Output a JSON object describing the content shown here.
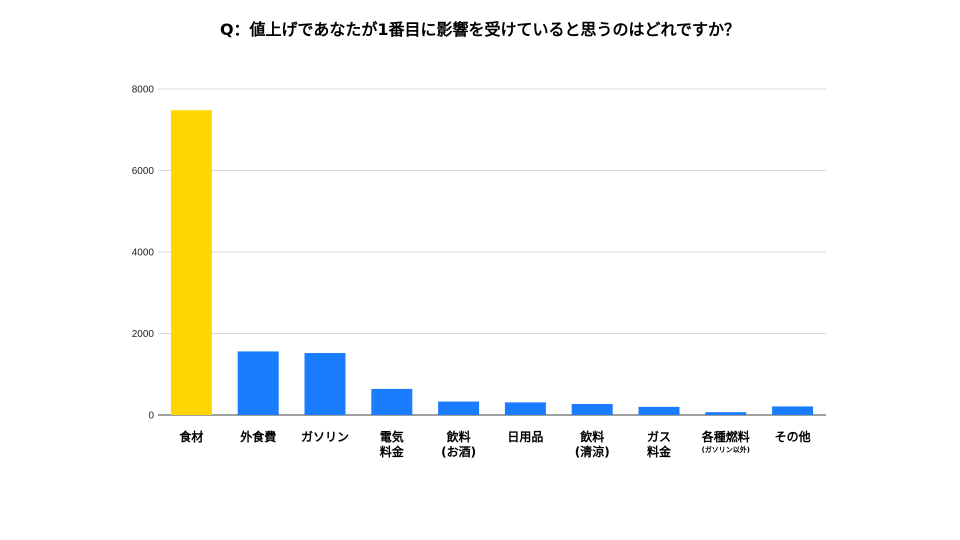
{
  "chart_data": {
    "type": "bar",
    "title": "Q：値上げであなたが1番目に影響を受けていると思うのはどれですか？",
    "xlabel": "",
    "ylabel": "",
    "ylim": [
      0,
      8000
    ],
    "yticks": [
      "0",
      "2000",
      "4000",
      "6000",
      "8000"
    ],
    "grid": true,
    "categories": [
      {
        "lines": [
          "食材"
        ],
        "sub": ""
      },
      {
        "lines": [
          "外食費"
        ],
        "sub": ""
      },
      {
        "lines": [
          "ガソリン"
        ],
        "sub": ""
      },
      {
        "lines": [
          "電気",
          "料金"
        ],
        "sub": ""
      },
      {
        "lines": [
          "飲料",
          "(お酒)"
        ],
        "sub": ""
      },
      {
        "lines": [
          "日用品"
        ],
        "sub": ""
      },
      {
        "lines": [
          "飲料",
          "(清涼)"
        ],
        "sub": ""
      },
      {
        "lines": [
          "ガス",
          "料金"
        ],
        "sub": ""
      },
      {
        "lines": [
          "各種燃料"
        ],
        "sub": "(ガソリン以外)"
      },
      {
        "lines": [
          "その他"
        ],
        "sub": ""
      }
    ],
    "values": [
      7480,
      1560,
      1520,
      640,
      330,
      310,
      270,
      200,
      70,
      210
    ],
    "colors": {
      "highlight": "#FFD600",
      "default": "#1A7CFF",
      "grid": "#D9D9D9",
      "axis": "#666666"
    },
    "highlight_index": 0
  }
}
